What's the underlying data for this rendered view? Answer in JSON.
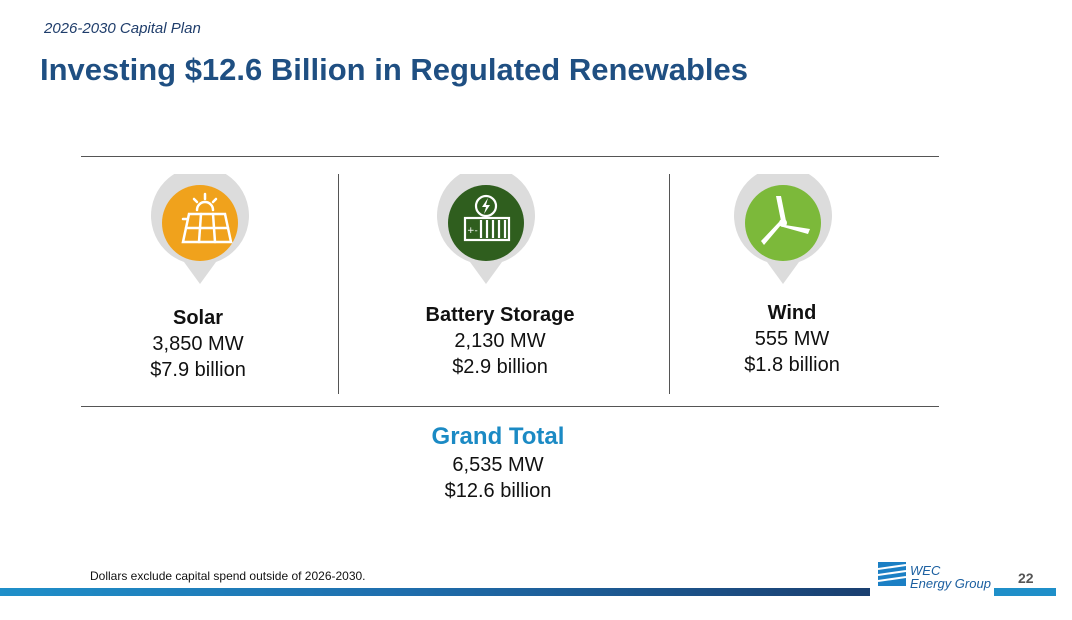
{
  "header": {
    "subtitle": "2026-2030 Capital Plan",
    "title": "Investing $12.6 Billion in Regulated Renewables"
  },
  "categories": [
    {
      "name": "Solar",
      "capacity": "3,850 MW",
      "cost": "$7.9 billion",
      "icon": "solar-panel-icon",
      "color": "#f0a21c"
    },
    {
      "name": "Battery Storage",
      "capacity": "2,130 MW",
      "cost": "$2.9 billion",
      "icon": "battery-storage-icon",
      "color": "#2f5e1e"
    },
    {
      "name": "Wind",
      "capacity": "555 MW",
      "cost": "$1.8 billion",
      "icon": "wind-turbine-icon",
      "color": "#7cb93a"
    }
  ],
  "grand_total": {
    "label": "Grand Total",
    "capacity": "6,535 MW",
    "cost": "$12.6 billion"
  },
  "footer": {
    "footnote": "Dollars exclude capital spend outside of 2026-2030.",
    "logo_line1": "WEC",
    "logo_line2": "Energy Group",
    "page_number": "22"
  },
  "colors": {
    "title": "#1f4f82",
    "grand_total": "#1b8ac4",
    "bar": "#1f8fc9"
  }
}
